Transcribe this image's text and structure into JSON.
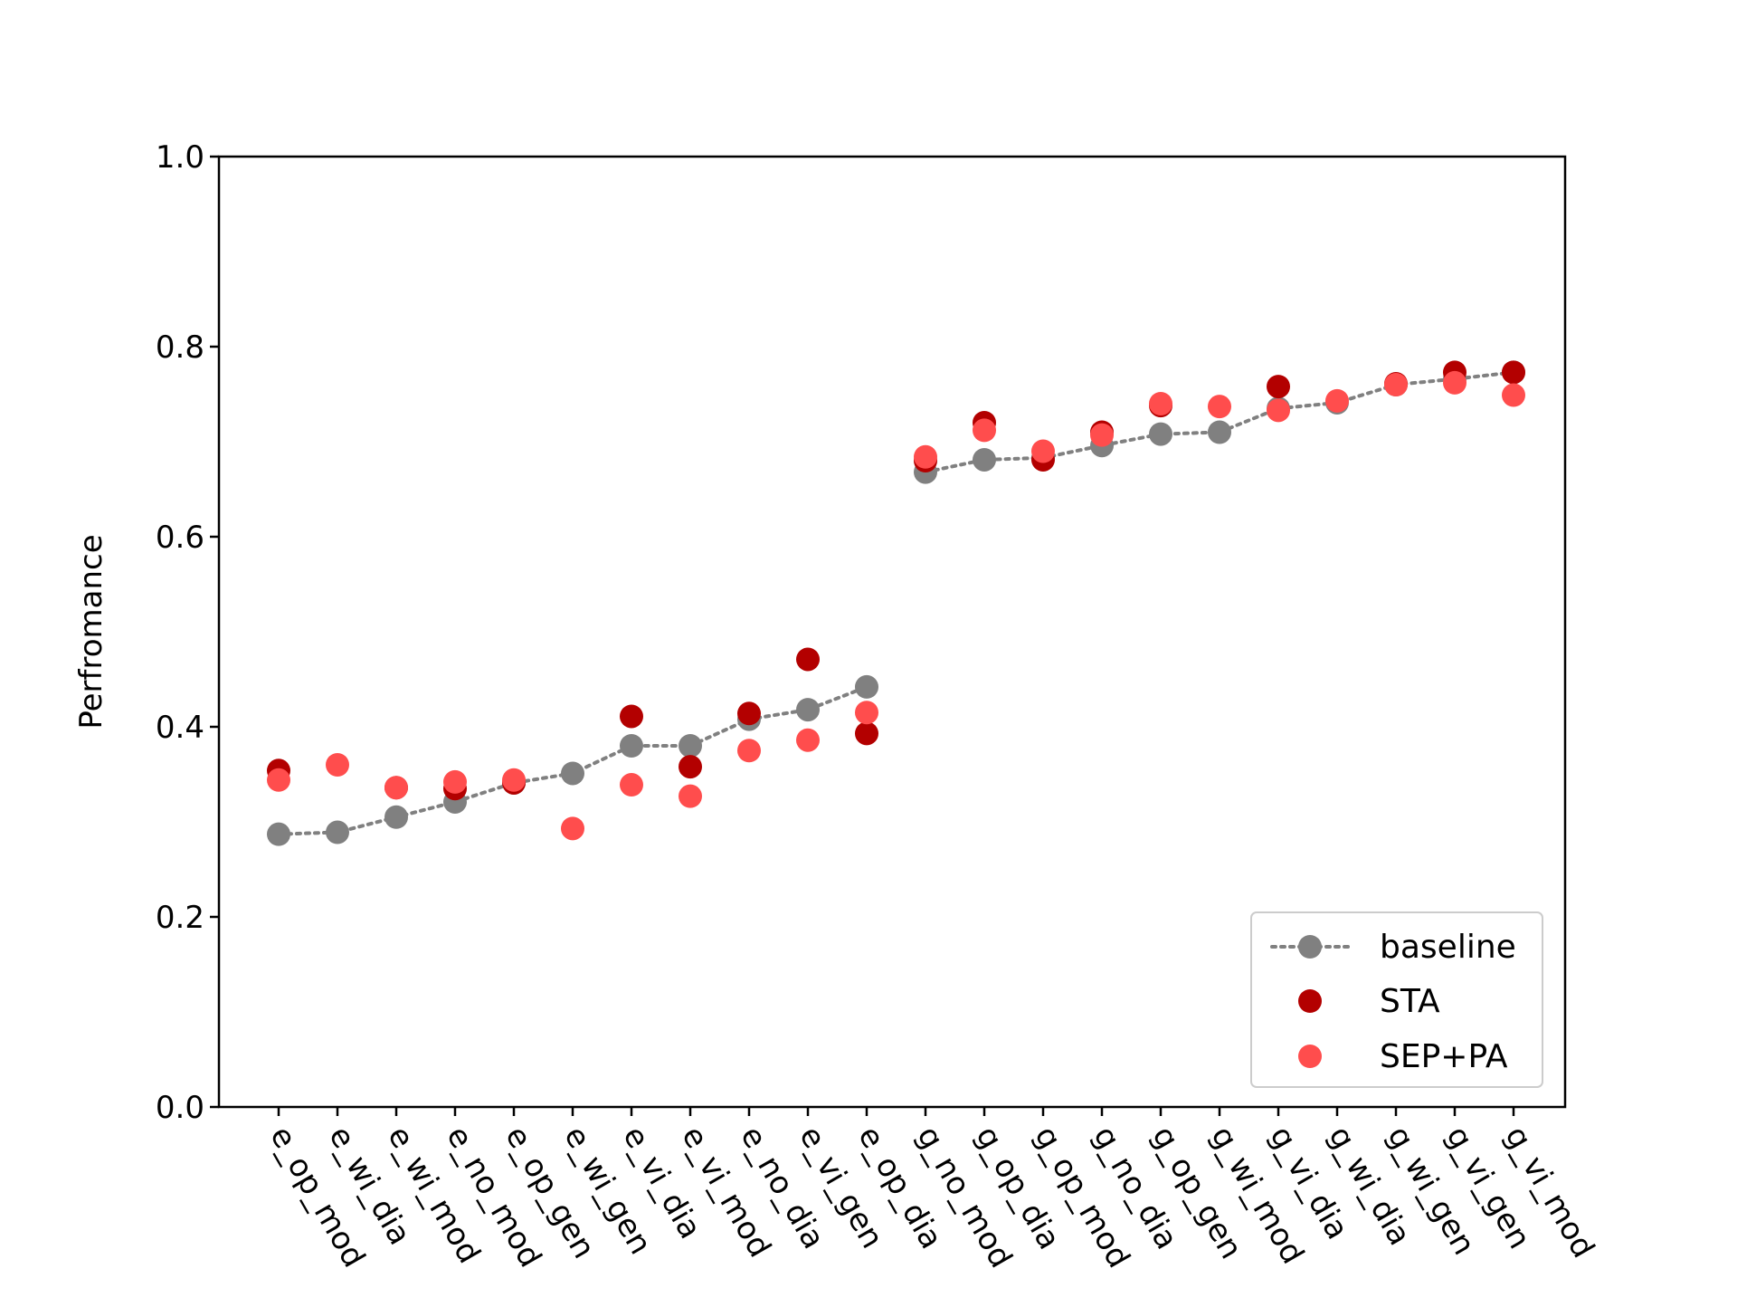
{
  "chart_data": {
    "type": "scatter",
    "title": "",
    "xlabel": "",
    "ylabel": "Perfromance",
    "ylim": [
      0.0,
      1.0
    ],
    "yticks": [
      "0.0",
      "0.2",
      "0.4",
      "0.6",
      "0.8",
      "1.0"
    ],
    "categories": [
      "e_op_mod",
      "e_wi_dia",
      "e_wi_mod",
      "e_no_mod",
      "e_op_gen",
      "e_wi_gen",
      "e_vi_dia",
      "e_vi_mod",
      "e_no_dia",
      "e_vi_gen",
      "e_op_dia",
      "g_no_mod",
      "g_op_dia",
      "g_op_mod",
      "g_no_dia",
      "g_op_gen",
      "g_wi_mod",
      "g_vi_dia",
      "g_wi_dia",
      "g_wi_gen",
      "g_vi_gen",
      "g_vi_mod"
    ],
    "grid": false,
    "legend_position": "lower-right",
    "series": [
      {
        "name": "baseline",
        "color": "#808080",
        "style": "dotted-line-with-markers",
        "segments": [
          [
            0,
            10
          ],
          [
            11,
            21
          ]
        ],
        "values": [
          0.287,
          0.289,
          0.305,
          0.321,
          0.341,
          0.351,
          0.38,
          0.38,
          0.408,
          0.418,
          0.442,
          0.668,
          0.681,
          0.683,
          0.696,
          0.708,
          0.71,
          0.735,
          0.741,
          0.76,
          0.766,
          0.773
        ]
      },
      {
        "name": "STA",
        "color": "#b30000",
        "style": "markers",
        "values": [
          0.354,
          null,
          0.336,
          0.335,
          0.341,
          null,
          0.411,
          0.358,
          0.414,
          0.471,
          0.393,
          0.68,
          0.72,
          0.681,
          0.71,
          0.738,
          null,
          0.758,
          null,
          0.761,
          0.773,
          0.773
        ]
      },
      {
        "name": "SEP+PA",
        "color": "#ff4d4d",
        "style": "markers",
        "values": [
          0.344,
          0.36,
          0.336,
          0.342,
          0.344,
          0.293,
          0.339,
          0.327,
          0.375,
          0.386,
          0.415,
          0.684,
          0.712,
          0.69,
          0.707,
          0.74,
          0.737,
          0.733,
          0.743,
          0.76,
          0.762,
          0.749
        ]
      }
    ]
  }
}
